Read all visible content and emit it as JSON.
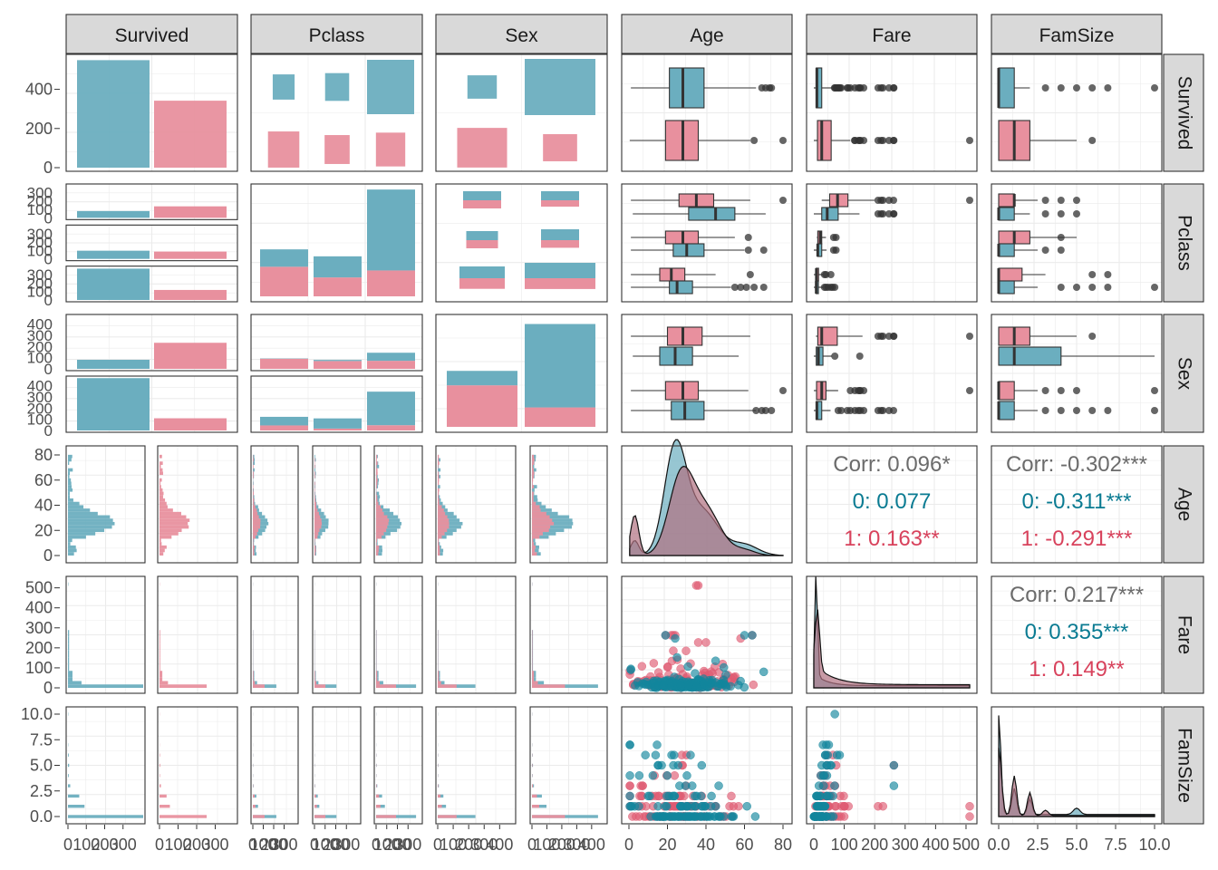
{
  "colors": {
    "survived_0": "#6BAEBF",
    "survived_1": "#E8909E",
    "corr_0": "#0A7B92",
    "corr_1": "#D8425C",
    "corr_all": "#6B6B6B",
    "strip_bg": "#D9D9D9",
    "grid": "#EBEBEB",
    "panel_border": "#333333",
    "point_0": "#12869C",
    "point_1": "#DE5A72",
    "outlier": "#333333"
  },
  "chart_data": {
    "type": "pairs",
    "variables": [
      "Survived",
      "Pclass",
      "Sex",
      "Age",
      "Fare",
      "FamSize"
    ],
    "color_by": "Survived",
    "groups": [
      "0",
      "1"
    ],
    "axes": {
      "Survived": {
        "ticks": [
          "0",
          "200",
          "400"
        ],
        "range": [
          0,
          560
        ]
      },
      "Pclass": {
        "ticks": [
          "100",
          "200",
          "300"
        ]
      },
      "Sex": {
        "ticks": [
          "0",
          "100",
          "200",
          "300",
          "400"
        ]
      },
      "Age": {
        "ticks": [
          "0",
          "20",
          "40",
          "60",
          "80"
        ],
        "range": [
          0,
          80
        ]
      },
      "Fare": {
        "ticks": [
          "0",
          "100",
          "200",
          "300",
          "400",
          "500"
        ],
        "range": [
          0,
          512
        ]
      },
      "FamSize": {
        "ticks": [
          "0.0",
          "2.5",
          "5.0",
          "7.5",
          "10.0"
        ],
        "range": [
          0,
          10
        ]
      }
    },
    "bottom_tick_labels": {
      "Survived": [
        "0",
        "100",
        "200",
        "300"
      ],
      "Pclass": [
        "0",
        "100",
        "200",
        "300"
      ],
      "Sex": [
        "0",
        "100",
        "200",
        "300",
        "400"
      ],
      "Age": [
        "0",
        "20",
        "40",
        "60",
        "80"
      ],
      "Fare": [
        "0",
        "100",
        "200",
        "300",
        "400",
        "500"
      ],
      "FamSize": [
        "0.0",
        "2.5",
        "5.0",
        "7.5",
        "10.0"
      ]
    },
    "counts": {
      "survived": {
        "0": 549,
        "1": 342
      },
      "pclass_by_survived": {
        "1": {
          "0": 80,
          "1": 136
        },
        "2": {
          "0": 97,
          "1": 87
        },
        "3": {
          "0": 372,
          "1": 119
        }
      },
      "sex_by_survived": {
        "female": {
          "0": 81,
          "1": 233
        },
        "male": {
          "0": 468,
          "1": 109
        }
      },
      "sex_by_pclass": {
        "female": {
          "1": 94,
          "2": 76,
          "3": 144
        },
        "male": {
          "1": 122,
          "2": 108,
          "3": 347
        }
      }
    },
    "boxplots": {
      "Age": {
        "by_survived": {
          "0": [
            1,
            21,
            28,
            39,
            66
          ],
          "1": [
            0.4,
            19,
            28,
            36,
            63
          ]
        },
        "pclass1": {
          "0": [
            2,
            31,
            45,
            55,
            71
          ],
          "1": [
            1,
            26,
            35,
            44,
            63
          ]
        },
        "pclass2": {
          "0": [
            1,
            23,
            30,
            39,
            60
          ],
          "1": [
            1,
            19,
            28,
            36,
            55
          ]
        },
        "pclass3": {
          "0": [
            1,
            21,
            25,
            33,
            53
          ],
          "1": [
            1,
            16,
            22,
            29,
            45
          ]
        },
        "female": {
          "0": [
            2,
            16,
            24,
            33,
            57
          ],
          "1": [
            1,
            20,
            28,
            38,
            63
          ]
        },
        "male": {
          "0": [
            1,
            22,
            29,
            39,
            66
          ],
          "1": [
            1,
            19,
            28,
            36,
            62
          ]
        }
      },
      "Fare": {
        "by_survived": {
          "0": [
            0,
            8,
            10,
            26,
            60
          ],
          "1": [
            0,
            12,
            26,
            57,
            120
          ]
        },
        "pclass1": {
          "0": [
            0,
            26,
            44,
            80,
            150
          ],
          "1": [
            26,
            52,
            78,
            112,
            200
          ]
        },
        "pclass2": {
          "0": [
            0,
            12,
            13,
            26,
            42
          ],
          "1": [
            10,
            13,
            21,
            26,
            40
          ]
        },
        "pclass3": {
          "0": [
            0,
            7.7,
            8,
            15,
            30
          ],
          "1": [
            0,
            7.8,
            8.5,
            15.5,
            30
          ]
        },
        "female": {
          "0": [
            0,
            8,
            15,
            30,
            60
          ],
          "1": [
            7,
            13,
            26,
            77,
            160
          ]
        },
        "male": {
          "0": [
            0,
            7.8,
            10,
            26,
            55
          ],
          "1": [
            0,
            9,
            26,
            40,
            80
          ]
        }
      },
      "FamSize": {
        "by_survived": {
          "0": [
            0,
            0,
            0,
            1,
            2
          ],
          "1": [
            0,
            0,
            1,
            2,
            5
          ]
        },
        "pclass1": {
          "0": [
            0,
            0,
            0,
            1,
            2
          ],
          "1": [
            0,
            0,
            1,
            1,
            2.5
          ]
        },
        "pclass2": {
          "0": [
            0,
            0,
            0,
            1,
            2.5
          ],
          "1": [
            0,
            0,
            1,
            2,
            5
          ]
        },
        "pclass3": {
          "0": [
            0,
            0,
            0,
            1,
            2.5
          ],
          "1": [
            0,
            0,
            0,
            1.5,
            3
          ]
        },
        "female": {
          "0": [
            0,
            0,
            1,
            4,
            10
          ],
          "1": [
            0,
            0,
            1,
            2,
            5
          ]
        },
        "male": {
          "0": [
            0,
            0,
            0,
            1,
            2.5
          ],
          "1": [
            0,
            0,
            0,
            1,
            2.5
          ]
        }
      }
    },
    "correlations": [
      {
        "pair": "Age-Fare",
        "overall": "Corr: 0.096*",
        "group_0": "0: 0.077",
        "group_1": "1: 0.163**"
      },
      {
        "pair": "Age-FamSize",
        "overall": "Corr: -0.302***",
        "group_0": "0: -0.311***",
        "group_1": "1: -0.291***"
      },
      {
        "pair": "Fare-FamSize",
        "overall": "Corr: 0.217***",
        "group_0": "0: 0.355***",
        "group_1": "1: 0.149**"
      }
    ]
  }
}
